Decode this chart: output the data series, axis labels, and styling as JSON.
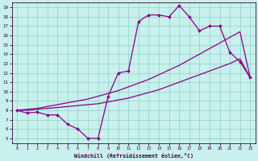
{
  "xlabel": "Windchill (Refroidissement éolien,°C)",
  "xlim": [
    -0.5,
    23.5
  ],
  "ylim": [
    4.5,
    19.5
  ],
  "xticks": [
    0,
    1,
    2,
    3,
    4,
    5,
    6,
    7,
    8,
    9,
    10,
    11,
    12,
    13,
    14,
    15,
    16,
    17,
    18,
    19,
    20,
    21,
    22,
    23
  ],
  "yticks": [
    5,
    6,
    7,
    8,
    9,
    10,
    11,
    12,
    13,
    14,
    15,
    16,
    17,
    18,
    19
  ],
  "bg_color": "#c8f0ec",
  "grid_color": "#96d8d0",
  "line_color": "#880088",
  "curve1_x": [
    0,
    1,
    2,
    3,
    4,
    5,
    6,
    7,
    8,
    9,
    10,
    11,
    12,
    13,
    14,
    15,
    16,
    17,
    18,
    19,
    20,
    21,
    22,
    23
  ],
  "curve1_y": [
    8.0,
    7.7,
    7.8,
    7.5,
    7.5,
    6.5,
    6.0,
    5.0,
    5.0,
    9.5,
    12.0,
    12.2,
    17.5,
    18.2,
    18.2,
    18.0,
    19.2,
    18.0,
    16.5,
    17.0,
    17.0,
    14.2,
    13.2,
    11.5
  ],
  "curve2_x": [
    0,
    1,
    2,
    3,
    4,
    5,
    6,
    7,
    8,
    9,
    10,
    11,
    12,
    13,
    14,
    15,
    16,
    17,
    18,
    19,
    20,
    21,
    22,
    23
  ],
  "curve2_y": [
    8.0,
    8.0,
    8.1,
    8.2,
    8.3,
    8.4,
    8.5,
    8.6,
    8.7,
    8.9,
    9.1,
    9.3,
    9.6,
    9.9,
    10.2,
    10.6,
    11.0,
    11.4,
    11.8,
    12.2,
    12.6,
    13.0,
    13.5,
    11.5
  ],
  "curve3_x": [
    0,
    1,
    2,
    3,
    4,
    5,
    6,
    7,
    8,
    9,
    10,
    11,
    12,
    13,
    14,
    15,
    16,
    17,
    18,
    19,
    20,
    21,
    22,
    23
  ],
  "curve3_y": [
    8.0,
    8.1,
    8.2,
    8.4,
    8.6,
    8.8,
    9.0,
    9.2,
    9.5,
    9.8,
    10.1,
    10.5,
    10.9,
    11.3,
    11.8,
    12.3,
    12.8,
    13.4,
    14.0,
    14.6,
    15.2,
    15.8,
    16.4,
    11.5
  ]
}
